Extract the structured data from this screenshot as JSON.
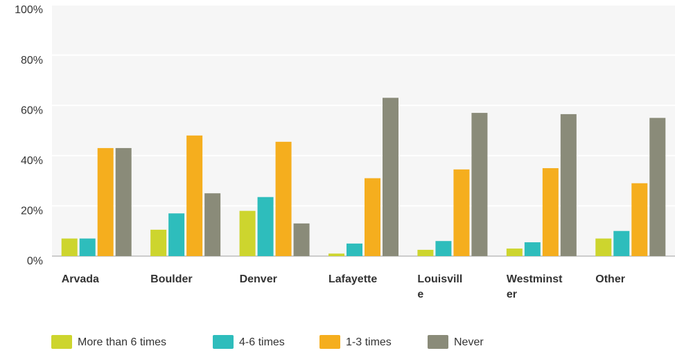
{
  "chart_data": {
    "type": "bar",
    "categories": [
      "Arvada",
      "Boulder",
      "Denver",
      "Lafayette",
      "Louisville",
      "Westminster",
      "Other"
    ],
    "series": [
      {
        "name": "More than 6 times",
        "color": "#cdd52e",
        "values": [
          7,
          10.5,
          18,
          1,
          2.5,
          3,
          7
        ]
      },
      {
        "name": "4-6 times",
        "color": "#2ebdbc",
        "values": [
          7,
          17,
          23.5,
          5,
          6,
          5.5,
          10
        ]
      },
      {
        "name": "1-3 times",
        "color": "#f5ae1e",
        "values": [
          43,
          48,
          45.5,
          31,
          34.5,
          35,
          29
        ]
      },
      {
        "name": "Never",
        "color": "#8a8b79",
        "values": [
          43,
          25,
          13,
          63,
          57,
          56.5,
          55
        ]
      }
    ],
    "ylim": [
      0,
      100
    ],
    "yticks": [
      {
        "value": 0,
        "label": "0%"
      },
      {
        "value": 20,
        "label": "20%"
      },
      {
        "value": 40,
        "label": "40%"
      },
      {
        "value": 60,
        "label": "60%"
      },
      {
        "value": 80,
        "label": "80%"
      },
      {
        "value": 100,
        "label": "100%"
      }
    ],
    "grid": true,
    "legend": "bottom"
  }
}
